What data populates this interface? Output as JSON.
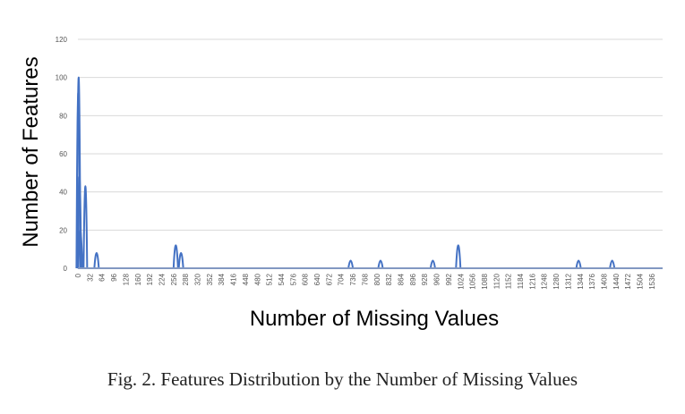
{
  "figure": {
    "caption": "Fig. 2.  Features Distribution by the Number of Missing Values"
  },
  "chart_data": {
    "type": "line",
    "title": "",
    "xlabel": "Number of Missing Values",
    "ylabel": "Number of Features",
    "xlim": [
      0,
      1565
    ],
    "ylim": [
      0,
      120
    ],
    "y_ticks": [
      0,
      20,
      40,
      60,
      80,
      100,
      120
    ],
    "x_ticks": [
      0,
      32,
      64,
      96,
      128,
      160,
      192,
      224,
      256,
      288,
      320,
      352,
      384,
      416,
      448,
      480,
      512,
      544,
      576,
      608,
      640,
      672,
      704,
      736,
      768,
      800,
      832,
      864,
      896,
      928,
      960,
      992,
      1024,
      1056,
      1088,
      1120,
      1152,
      1184,
      1216,
      1248,
      1280,
      1312,
      1344,
      1376,
      1408,
      1440,
      1472,
      1504,
      1536
    ],
    "grid": true,
    "legend": "none",
    "series_color": "#4472c4",
    "series": [
      {
        "points": [
          [
            0,
            0
          ],
          [
            1,
            92
          ],
          [
            2,
            100
          ],
          [
            4,
            48
          ],
          [
            6,
            20
          ],
          [
            8,
            0
          ],
          [
            20,
            43
          ],
          [
            50,
            8
          ],
          [
            262,
            12
          ],
          [
            276,
            8
          ],
          [
            730,
            4
          ],
          [
            810,
            4
          ],
          [
            950,
            4
          ],
          [
            1018,
            12
          ],
          [
            1340,
            4
          ],
          [
            1430,
            4
          ]
        ]
      }
    ]
  }
}
